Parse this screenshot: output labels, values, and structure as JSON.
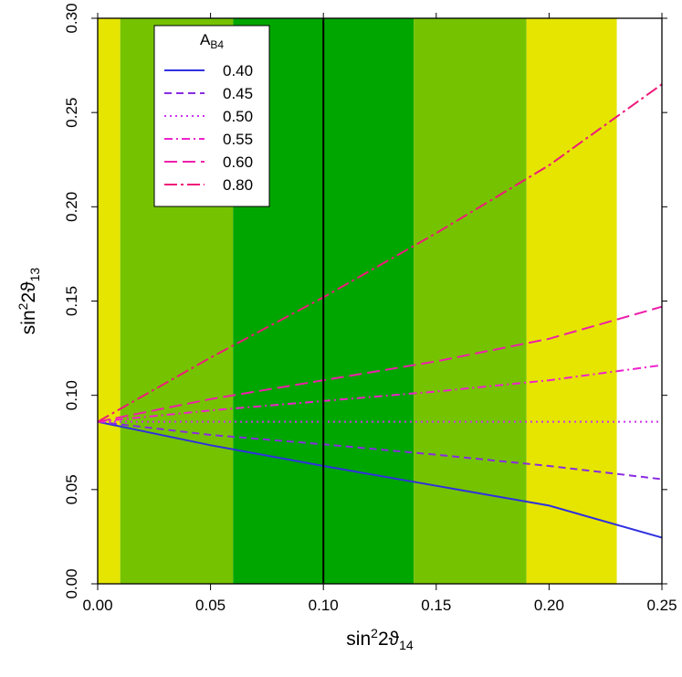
{
  "chart_data": {
    "type": "line",
    "xlabel": {
      "prefix": "sin",
      "sup": "2",
      "mid": "2ϑ",
      "sub": "14"
    },
    "ylabel": {
      "prefix": "sin",
      "sup": "2",
      "mid": "2ϑ",
      "sub": "13"
    },
    "xlim": [
      0,
      0.25
    ],
    "ylim": [
      0,
      0.3
    ],
    "xticks": [
      "0.00",
      "0.05",
      "0.10",
      "0.15",
      "0.20",
      "0.25"
    ],
    "yticks": [
      "0.00",
      "0.05",
      "0.10",
      "0.15",
      "0.20",
      "0.25",
      "0.30"
    ],
    "grid": false,
    "bands": [
      {
        "x0": 0.0,
        "x1": 0.01,
        "color": "#e5e500"
      },
      {
        "x0": 0.01,
        "x1": 0.06,
        "color": "#75c300"
      },
      {
        "x0": 0.06,
        "x1": 0.14,
        "color": "#00a600"
      },
      {
        "x0": 0.14,
        "x1": 0.19,
        "color": "#75c300"
      },
      {
        "x0": 0.19,
        "x1": 0.23,
        "color": "#e5e500"
      }
    ],
    "vline": {
      "x": 0.1,
      "color": "#000000"
    },
    "legend": {
      "title": {
        "main": "A",
        "sub": "B4"
      },
      "placement": "top-left"
    },
    "series": [
      {
        "name": "0.40",
        "color": "#3030e0",
        "dash": "solid",
        "x": [
          0,
          0.05,
          0.1,
          0.15,
          0.2,
          0.25
        ],
        "y": [
          0.086,
          0.0735,
          0.0625,
          0.052,
          0.0415,
          0.0245
        ]
      },
      {
        "name": "0.45",
        "color": "#8a2be2",
        "dash": "dash",
        "x": [
          0,
          0.05,
          0.1,
          0.15,
          0.2,
          0.25
        ],
        "y": [
          0.086,
          0.079,
          0.074,
          0.0685,
          0.0625,
          0.0555
        ]
      },
      {
        "name": "0.50",
        "color": "#cc33ee",
        "dash": "dot",
        "x": [
          0,
          0.05,
          0.1,
          0.15,
          0.2,
          0.25
        ],
        "y": [
          0.086,
          0.086,
          0.086,
          0.086,
          0.086,
          0.086
        ]
      },
      {
        "name": "0.55",
        "color": "#ee22cc",
        "dash": "dashdot",
        "x": [
          0,
          0.05,
          0.1,
          0.15,
          0.2,
          0.25
        ],
        "y": [
          0.086,
          0.092,
          0.097,
          0.102,
          0.108,
          0.116
        ]
      },
      {
        "name": "0.60",
        "color": "#ee1faa",
        "dash": "longdash",
        "x": [
          0,
          0.05,
          0.1,
          0.15,
          0.2,
          0.25
        ],
        "y": [
          0.086,
          0.098,
          0.108,
          0.118,
          0.13,
          0.147
        ]
      },
      {
        "name": "0.80",
        "color": "#ee1a7a",
        "dash": "twodash",
        "x": [
          0,
          0.05,
          0.1,
          0.15,
          0.2,
          0.25
        ],
        "y": [
          0.086,
          0.12,
          0.152,
          0.186,
          0.222,
          0.265
        ]
      }
    ]
  }
}
